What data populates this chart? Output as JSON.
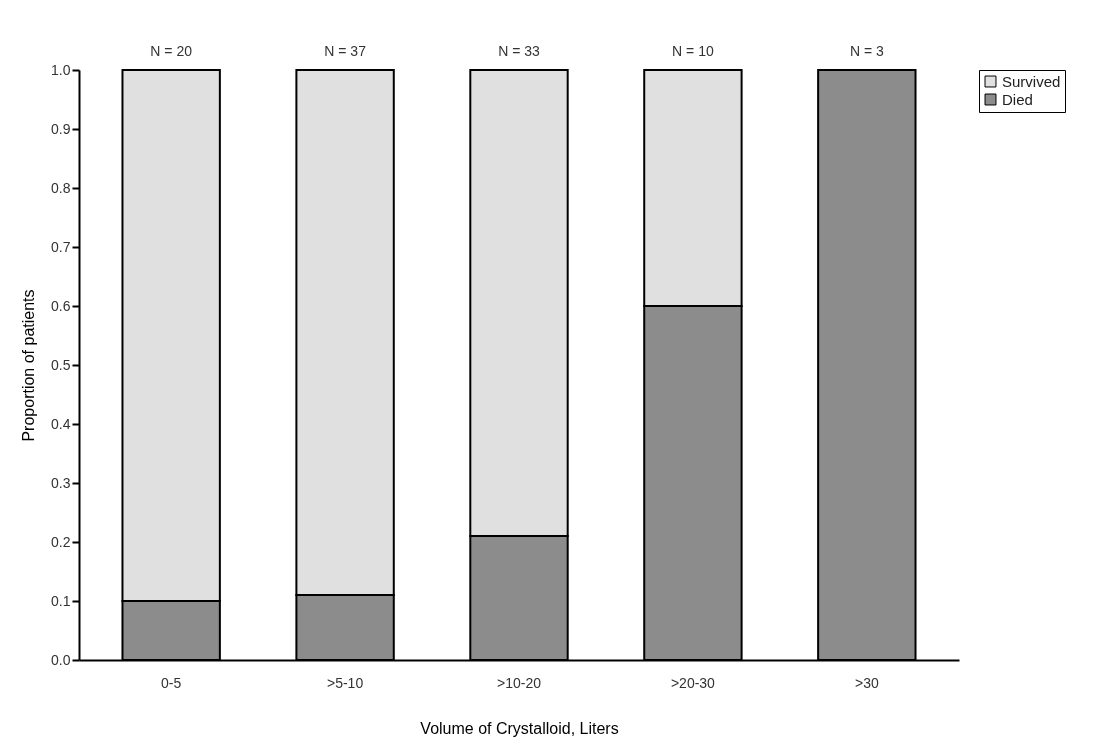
{
  "chart_data": {
    "type": "bar",
    "stacked": true,
    "xlabel": "Volume of Crystalloid, Liters",
    "ylabel": "Proportion of patients",
    "categories": [
      "0-5",
      ">5-10",
      ">10-20",
      ">20-30",
      ">30"
    ],
    "series": [
      {
        "name": "Died",
        "color": "#8c8c8c",
        "values": [
          0.1,
          0.11,
          0.21,
          0.6,
          1.0
        ]
      },
      {
        "name": "Survived",
        "color": "#e0e0e0",
        "values": [
          0.9,
          0.89,
          0.79,
          0.4,
          0.0
        ]
      }
    ],
    "ylim": [
      0,
      1
    ],
    "yticks": [
      {
        "value": 0,
        "label": "0.0"
      },
      0.1,
      0.2,
      0.3,
      0.4,
      0.5,
      0.6,
      0.7,
      0.8,
      0.9,
      {
        "value": 1,
        "label": "1.0"
      }
    ],
    "grid": false,
    "legend": "right",
    "annotations": [
      {
        "text": "N = 20",
        "x": "0-5",
        "y": 1.0
      },
      {
        "text": "N = 37",
        "x": ">5-10",
        "y": 1.0
      },
      {
        "text": "N = 33",
        "x": ">10-20",
        "y": 1.0
      },
      {
        "text": "N = 10",
        "x": ">20-30",
        "y": 1.0
      },
      {
        "text": "N = 3",
        "x": ">30",
        "y": 1.0
      }
    ]
  }
}
